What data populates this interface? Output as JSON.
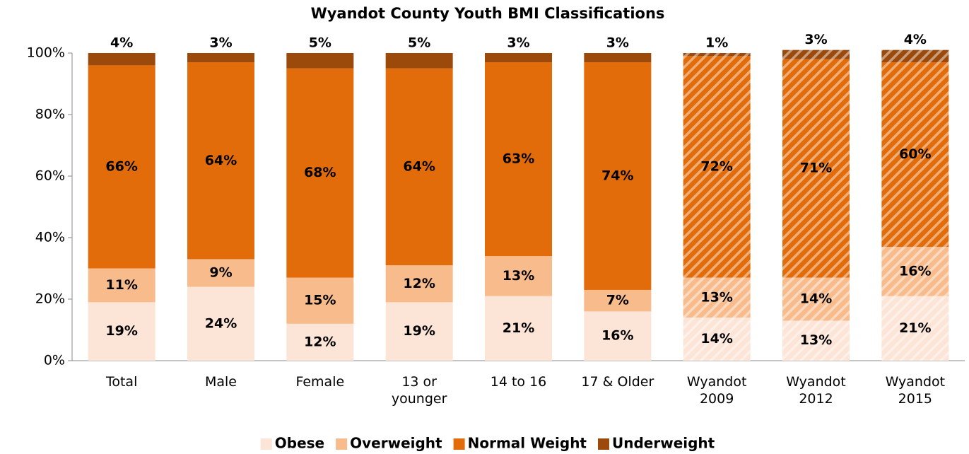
{
  "chart_data": {
    "type": "stacked_bar",
    "title": "Wyandot County Youth BMI Classifications",
    "categories": [
      "Total",
      "Male",
      "Female",
      "13 or younger",
      "14 to 16",
      "17 & Older",
      "Wyandot 2009",
      "Wyandot 2012",
      "Wyandot 2015"
    ],
    "hatched": [
      false,
      false,
      false,
      false,
      false,
      false,
      true,
      true,
      true
    ],
    "series": [
      {
        "name": "Obese",
        "color": "#fce4d6",
        "values": [
          19,
          24,
          12,
          19,
          21,
          16,
          14,
          13,
          21
        ],
        "value_labels": [
          "19%",
          "24%",
          "12%",
          "19%",
          "21%",
          "16%",
          "14%",
          "13%",
          "21%"
        ]
      },
      {
        "name": "Overweight",
        "color": "#f8bb8c",
        "values": [
          11,
          9,
          15,
          12,
          13,
          7,
          13,
          14,
          16
        ],
        "value_labels": [
          "11%",
          "9%",
          "15%",
          "12%",
          "13%",
          "7%",
          "13%",
          "14%",
          "16%"
        ]
      },
      {
        "name": "Normal Weight",
        "color": "#e26b0a",
        "values": [
          66,
          64,
          68,
          64,
          63,
          74,
          72,
          71,
          60
        ],
        "value_labels": [
          "66%",
          "64%",
          "68%",
          "64%",
          "63%",
          "74%",
          "72%",
          "71%",
          "60%"
        ]
      },
      {
        "name": "Underweight",
        "color": "#9c4a0c",
        "values": [
          4,
          3,
          5,
          5,
          3,
          3,
          1,
          3,
          4
        ],
        "value_labels": [
          "4%",
          "3%",
          "5%",
          "5%",
          "3%",
          "3%",
          "1%",
          "3%",
          "4%"
        ]
      }
    ],
    "ylim": [
      0,
      100
    ],
    "yticks": [
      {
        "value": 0,
        "label": "0%"
      },
      {
        "value": 20,
        "label": "20%"
      },
      {
        "value": 40,
        "label": "40%"
      },
      {
        "value": 60,
        "label": "60%"
      },
      {
        "value": 80,
        "label": "80%"
      },
      {
        "value": 100,
        "label": "100%"
      }
    ],
    "legend": "bottom"
  }
}
